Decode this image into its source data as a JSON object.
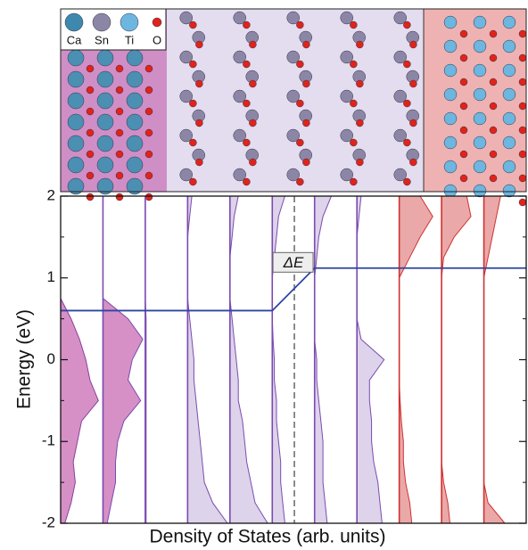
{
  "chart_data": {
    "type": "dos",
    "ylabel": "Energy (eV)",
    "xlabel": "Density of States (arb. units)",
    "ylim": [
      -2,
      2
    ],
    "yticks": [
      -2,
      -1,
      0,
      1,
      2
    ],
    "annotation": "ΔE",
    "legend": [
      {
        "name": "Ca",
        "color": "#3f88ad"
      },
      {
        "name": "Sn",
        "color": "#8c86a6"
      },
      {
        "name": "Ti",
        "color": "#6cb6e0"
      },
      {
        "name": "O",
        "color": "#e0231c"
      }
    ],
    "band_edge": {
      "values": [
        0.6,
        1.12
      ],
      "color": "#2d45a3"
    },
    "x": [
      -2,
      -1.75,
      -1.5,
      -1.25,
      -1,
      -0.75,
      -0.5,
      -0.25,
      0,
      0.25,
      0.5,
      0.75,
      1,
      1.25,
      1.5,
      1.75,
      2
    ],
    "series": [
      {
        "color": "#d690c6",
        "line": "#8a3f9e",
        "values": [
          0.1,
          0.25,
          0.35,
          0.3,
          0.4,
          0.5,
          0.9,
          0.7,
          0.6,
          0.45,
          0.25,
          0,
          0,
          0,
          0,
          0,
          0
        ]
      },
      {
        "color": "#d690c6",
        "line": "#7b4bb0",
        "values": [
          0.1,
          0.2,
          0.3,
          0.3,
          0.35,
          0.5,
          0.9,
          0.6,
          0.7,
          0.95,
          0.6,
          0,
          0,
          0,
          0,
          0,
          0
        ]
      },
      {
        "color": "#ddd3ea",
        "line": "#7b4bb0",
        "values": [
          0.02,
          0.02,
          0.02,
          0.02,
          0.02,
          0.02,
          0.02,
          0.02,
          0.02,
          0.02,
          0.02,
          0,
          0,
          0,
          0,
          0,
          0
        ]
      },
      {
        "color": "#ddd3ea",
        "line": "#7b4bb0",
        "values": [
          0.95,
          0.6,
          0.4,
          0.35,
          0.3,
          0.25,
          0.2,
          0.15,
          0.15,
          0.1,
          0.05,
          0,
          0,
          0,
          0,
          0.05,
          0.1
        ]
      },
      {
        "color": "#ddd3ea",
        "line": "#7b4bb0",
        "values": [
          0.9,
          0.6,
          0.5,
          0.4,
          0.35,
          0.3,
          0.2,
          0.2,
          0.15,
          0.1,
          0.05,
          0,
          0,
          0,
          0.05,
          0.1,
          0.2
        ]
      },
      {
        "color": "#ddd3ea",
        "line": "#7b4bb0",
        "values": [
          0.3,
          0.25,
          0.2,
          0.2,
          0.15,
          0.1,
          0.1,
          0.05,
          0.05,
          0.02,
          0,
          0,
          0,
          0.05,
          0.1,
          0.15,
          0.3
        ]
      },
      {
        "color": "#ddd3ea",
        "line": "#7b4bb0",
        "values": [
          0.3,
          0.25,
          0.2,
          0.2,
          0.2,
          0.15,
          0.1,
          0.05,
          0.05,
          0,
          0,
          0,
          0,
          0.05,
          0.1,
          0.2,
          0.4
        ]
      },
      {
        "color": "#ddd3ea",
        "line": "#7b4bb0",
        "values": [
          0.6,
          0.55,
          0.5,
          0.4,
          0.35,
          0.35,
          0.3,
          0.3,
          0.65,
          0.1,
          0,
          0,
          0,
          0,
          0,
          0.05,
          0.1
        ]
      },
      {
        "color": "#eba8a8",
        "line": "#d03232",
        "values": [
          0.3,
          0.25,
          0.15,
          0.1,
          0.1,
          0.05,
          0.02,
          0,
          0,
          0,
          0,
          0,
          0,
          0.25,
          0.5,
          0.8,
          0.5
        ]
      },
      {
        "color": "#eba8a8",
        "line": "#d03232",
        "values": [
          0.2,
          0.15,
          0.05,
          0,
          0,
          0,
          0,
          0,
          0,
          0,
          0,
          0,
          0,
          0.05,
          0.3,
          0.7,
          0.6
        ]
      },
      {
        "color": "#eba8a8",
        "line": "#d03232",
        "values": [
          0.5,
          0.1,
          0,
          0,
          0,
          0,
          0,
          0,
          0,
          0,
          0,
          0,
          0,
          0.1,
          0.2,
          0.3,
          0.4
        ]
      }
    ]
  }
}
